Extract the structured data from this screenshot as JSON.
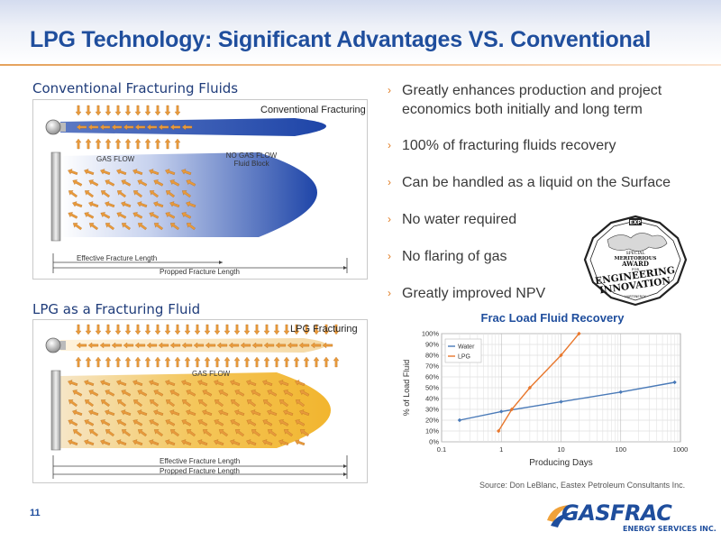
{
  "slide": {
    "title": "LPG Technology: Significant Advantages VS. Conventional",
    "page_number": "11",
    "source": "Source: Don LeBlanc, Eastex Petroleum Consultants Inc."
  },
  "conventional_panel": {
    "heading": "Conventional Fracturing Fluids",
    "label": "Conventional Fracturing",
    "gas_flow": "GAS FLOW",
    "no_gas_flow": "NO GAS FLOW",
    "fluid_block": "Fluid Block",
    "effective_length": "Effective Fracture Length",
    "propped_length": "Propped Fracture Length",
    "colors": {
      "plume": "#1e45a8",
      "arrow": "#e89a3c"
    }
  },
  "lpg_panel": {
    "heading": "LPG as a Fracturing Fluid",
    "label": "LPG Fracturing",
    "gas_flow": "GAS FLOW",
    "effective_length": "Effective Fracture Length",
    "propped_length": "Propped Fracture Length",
    "colors": {
      "plume": "#f2b52e",
      "arrow": "#e89a3c"
    }
  },
  "bullets": [
    {
      "line1": "Greatly enhances production and project",
      "line2": "economics both initially and long term"
    },
    {
      "line1": "100% of fracturing fluids recovery"
    },
    {
      "line1": "Can be handled as a liquid on the Surface"
    },
    {
      "line1": "No water required"
    },
    {
      "line1": "No flaring of gas"
    },
    {
      "line1": "Greatly improved NPV"
    }
  ],
  "bullet_marker": "›",
  "award": {
    "badge": "EXP",
    "line1": "SPECIAL",
    "line2": "MERITORIOUS",
    "line3": "AWARD",
    "line4": "FOR",
    "line5": "ENGINEERING",
    "line6": "INNOVATION",
    "line7": "HARTENERGY",
    "icon": "award-seal-icon"
  },
  "logo": {
    "name": "GASFRAC",
    "subtitle": "ENERGY SERVICES INC.",
    "colors": {
      "primary": "#1f4e9d",
      "accent": "#f0a23a"
    }
  },
  "chart_data": {
    "type": "line",
    "title": "Frac Load Fluid Recovery",
    "xlabel": "Producing Days",
    "ylabel": "% of Load Fluid",
    "xscale": "log",
    "xlim": [
      0.1,
      1000
    ],
    "xticks": [
      "0.1",
      "1",
      "10",
      "100",
      "1000"
    ],
    "ylim": [
      0,
      100
    ],
    "yticks": [
      "0%",
      "10%",
      "20%",
      "30%",
      "40%",
      "50%",
      "60%",
      "70%",
      "80%",
      "90%",
      "100%"
    ],
    "grid": true,
    "legend_position": "top-left",
    "series": [
      {
        "name": "Water",
        "color": "#4a7ab8",
        "marker": "diamond",
        "x": [
          0.2,
          1,
          10,
          100,
          800
        ],
        "y": [
          20,
          28,
          37,
          46,
          55
        ]
      },
      {
        "name": "LPG",
        "color": "#e8782e",
        "marker": "diamond",
        "x": [
          0.9,
          1.5,
          3,
          10,
          20
        ],
        "y": [
          10,
          30,
          50,
          80,
          100
        ]
      }
    ]
  }
}
